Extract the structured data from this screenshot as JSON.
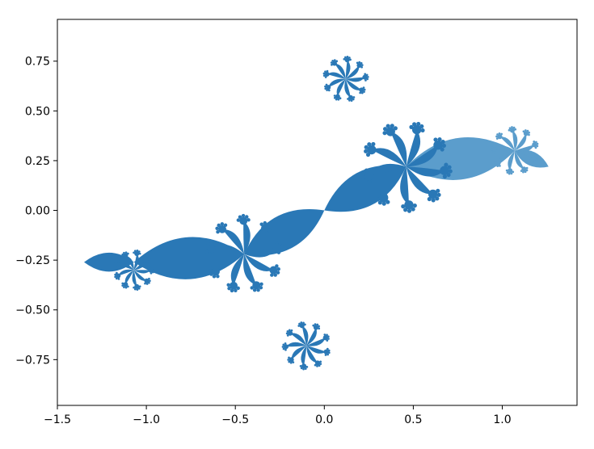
{
  "chart_data": {
    "type": "scatter",
    "title": "",
    "xlabel": "",
    "ylabel": "",
    "xlim": [
      -1.5,
      1.42
    ],
    "ylim": [
      -0.98,
      0.96
    ],
    "grid": false,
    "legend": "none",
    "xticks": [
      "−1.5",
      "−1.0",
      "−0.5",
      "0.0",
      "0.5",
      "1.0"
    ],
    "xtick_values": [
      -1.5,
      -1.0,
      -0.5,
      0.0,
      0.5,
      1.0
    ],
    "yticks": [
      "−0.75",
      "−0.50",
      "−0.25",
      "0.00",
      "0.25",
      "0.50",
      "0.75"
    ],
    "ytick_values": [
      -0.75,
      -0.5,
      -0.25,
      0.0,
      0.25,
      0.5,
      0.75
    ],
    "filled_julia_set": {
      "color": "#2a78b6",
      "light_color": "#5b9dcc",
      "spines": [
        [
          -1.35,
          -0.26
        ],
        [
          -1.07,
          -0.26
        ],
        [
          -0.45,
          -0.22
        ],
        [
          0.0,
          0.0
        ],
        [
          0.46,
          0.22
        ],
        [
          1.07,
          0.3
        ],
        [
          1.26,
          0.22
        ]
      ],
      "hubs": [
        {
          "x": -1.07,
          "y": -0.3,
          "r": 0.13
        },
        {
          "x": -0.45,
          "y": -0.22,
          "r": 0.26
        },
        {
          "x": -0.1,
          "y": -0.68,
          "r": 0.16
        },
        {
          "x": 0.46,
          "y": 0.22,
          "r": 0.3
        },
        {
          "x": 0.12,
          "y": 0.66,
          "r": 0.15
        },
        {
          "x": 1.07,
          "y": 0.3,
          "r": 0.16
        }
      ]
    }
  }
}
